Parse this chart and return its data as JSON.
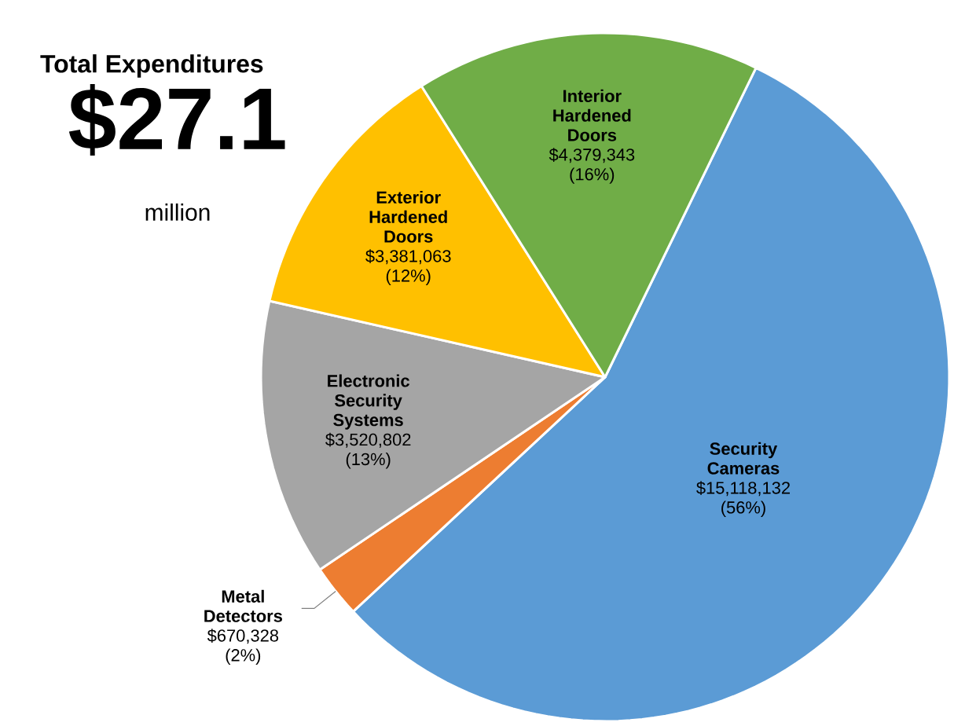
{
  "chart_data": {
    "type": "pie",
    "title": "Total Expenditures",
    "subtitle": "$27.1",
    "annotations": [
      "million"
    ],
    "categories": [
      "Security Cameras",
      "Metal Detectors",
      "Electronic Security Systems",
      "Exterior Hardened Doors",
      "Interior Hardened Doors"
    ],
    "values": [
      15118132,
      670328,
      3520802,
      3381063,
      4379343
    ],
    "colors": [
      "#5b9bd5",
      "#ed7d31",
      "#a5a5a5",
      "#ffc000",
      "#70ad47"
    ],
    "value_labels": [
      "$15,118,132 (56%)",
      "$670,328 (2%)",
      "$3,520,802 (13%)",
      "$3,381,063 (12%)",
      "$4,379,343 (16%)"
    ]
  }
}
